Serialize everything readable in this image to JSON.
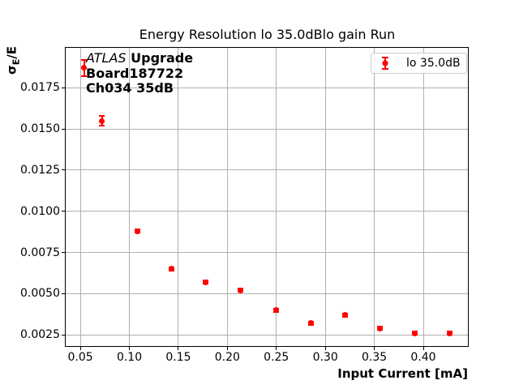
{
  "title": "Energy Resolution lo 35.0dBlo gain Run",
  "axes": {
    "xlabel": "Input Current [mA]",
    "ylabel_sigma": "σ",
    "ylabel_sub": "E",
    "ylabel_rest": "/E"
  },
  "annotation": {
    "line1_italic": "ATLAS",
    "line1_bold": "Upgrade",
    "line2": "Board187722",
    "line3": "Ch034 35dB"
  },
  "legend": {
    "label": "lo 35.0dB",
    "marker_color": "#ff0000"
  },
  "colors": {
    "series": "#ff0000",
    "grid": "#b0b0b0",
    "spine": "#000000",
    "legend_border": "#cccccc"
  },
  "chart_data": {
    "type": "scatter",
    "title": "Energy Resolution lo 35.0dBlo gain Run",
    "xlabel": "Input Current [mA]",
    "ylabel": "sigma_E/E",
    "xlim": [
      0.035,
      0.4455
    ],
    "ylim": [
      0.00182,
      0.01993
    ],
    "xticks": [
      0.05,
      0.1,
      0.15,
      0.2,
      0.25,
      0.3,
      0.35,
      0.4
    ],
    "xtick_labels": [
      "0.05",
      "0.10",
      "0.15",
      "0.20",
      "0.25",
      "0.30",
      "0.35",
      "0.40"
    ],
    "yticks": [
      0.0025,
      0.005,
      0.0075,
      0.01,
      0.0125,
      0.015,
      0.0175
    ],
    "ytick_labels": [
      "0.0025",
      "0.0050",
      "0.0075",
      "0.0100",
      "0.0125",
      "0.0150",
      "0.0175"
    ],
    "grid": true,
    "legend_position": "upper right",
    "series": [
      {
        "name": "lo 35.0dB",
        "color": "#ff0000",
        "marker": "circle",
        "x": [
          0.054,
          0.072,
          0.108,
          0.143,
          0.178,
          0.213,
          0.25,
          0.285,
          0.32,
          0.356,
          0.391,
          0.427
        ],
        "y": [
          0.0187,
          0.0155,
          0.0088,
          0.0065,
          0.0057,
          0.0052,
          0.004,
          0.0032,
          0.0037,
          0.0029,
          0.0026,
          0.0026
        ],
        "yerr": [
          0.0005,
          0.0003,
          0.0001,
          0.0001,
          0.0001,
          0.0001,
          0.0001,
          0.0001,
          0.0001,
          0.0001,
          0.0001,
          0.0001
        ]
      }
    ]
  }
}
